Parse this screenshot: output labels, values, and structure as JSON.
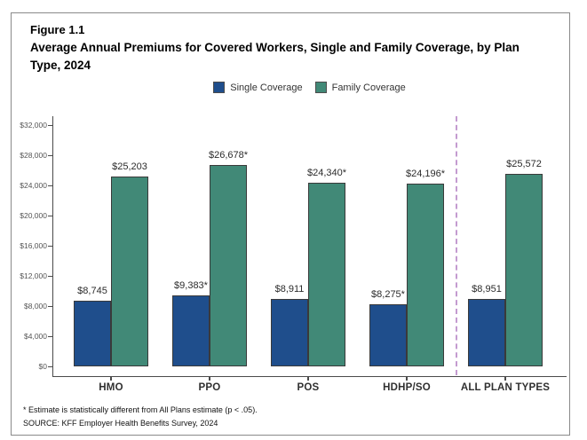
{
  "figure": {
    "label": "Figure 1.1",
    "title": "Average Annual Premiums for Covered Workers, Single and Family Coverage, by Plan Type, 2024"
  },
  "legend": [
    {
      "label": "Single Coverage",
      "color": "#1F4E8C"
    },
    {
      "label": "Family Coverage",
      "color": "#418977"
    }
  ],
  "chart_data": {
    "type": "bar",
    "title": "Average Annual Premiums for Covered Workers, Single and Family Coverage, by Plan Type, 2024",
    "categories": [
      "HMO",
      "PPO",
      "POS",
      "HDHP/SO",
      "ALL PLAN TYPES"
    ],
    "series": [
      {
        "name": "Single Coverage",
        "color": "#1F4E8C",
        "values": [
          8745,
          9383,
          8911,
          8275,
          8951
        ],
        "labels": [
          "$8,745",
          "$9,383*",
          "$8,911",
          "$8,275*",
          "$8,951"
        ]
      },
      {
        "name": "Family Coverage",
        "color": "#418977",
        "values": [
          25203,
          26678,
          24340,
          24196,
          25572
        ],
        "labels": [
          "$25,203",
          "$26,678*",
          "$24,340*",
          "$24,196*",
          "$25,572"
        ]
      }
    ],
    "y_axis": {
      "min": 0,
      "max": 32000,
      "step": 4000,
      "tick_labels": [
        "$0",
        "$4,000",
        "$8,000",
        "$12,000",
        "$16,000",
        "$20,000",
        "$24,000",
        "$28,000",
        "$32,000"
      ]
    },
    "grid": false,
    "legend_position": "top",
    "separator": {
      "after_category": "HDHP/SO",
      "color": "#C49BD0",
      "style": "dashed"
    }
  },
  "footnotes": [
    "* Estimate is statistically different from All Plans estimate (p < .05).",
    "SOURCE: KFF Employer Health Benefits Survey, 2024"
  ]
}
